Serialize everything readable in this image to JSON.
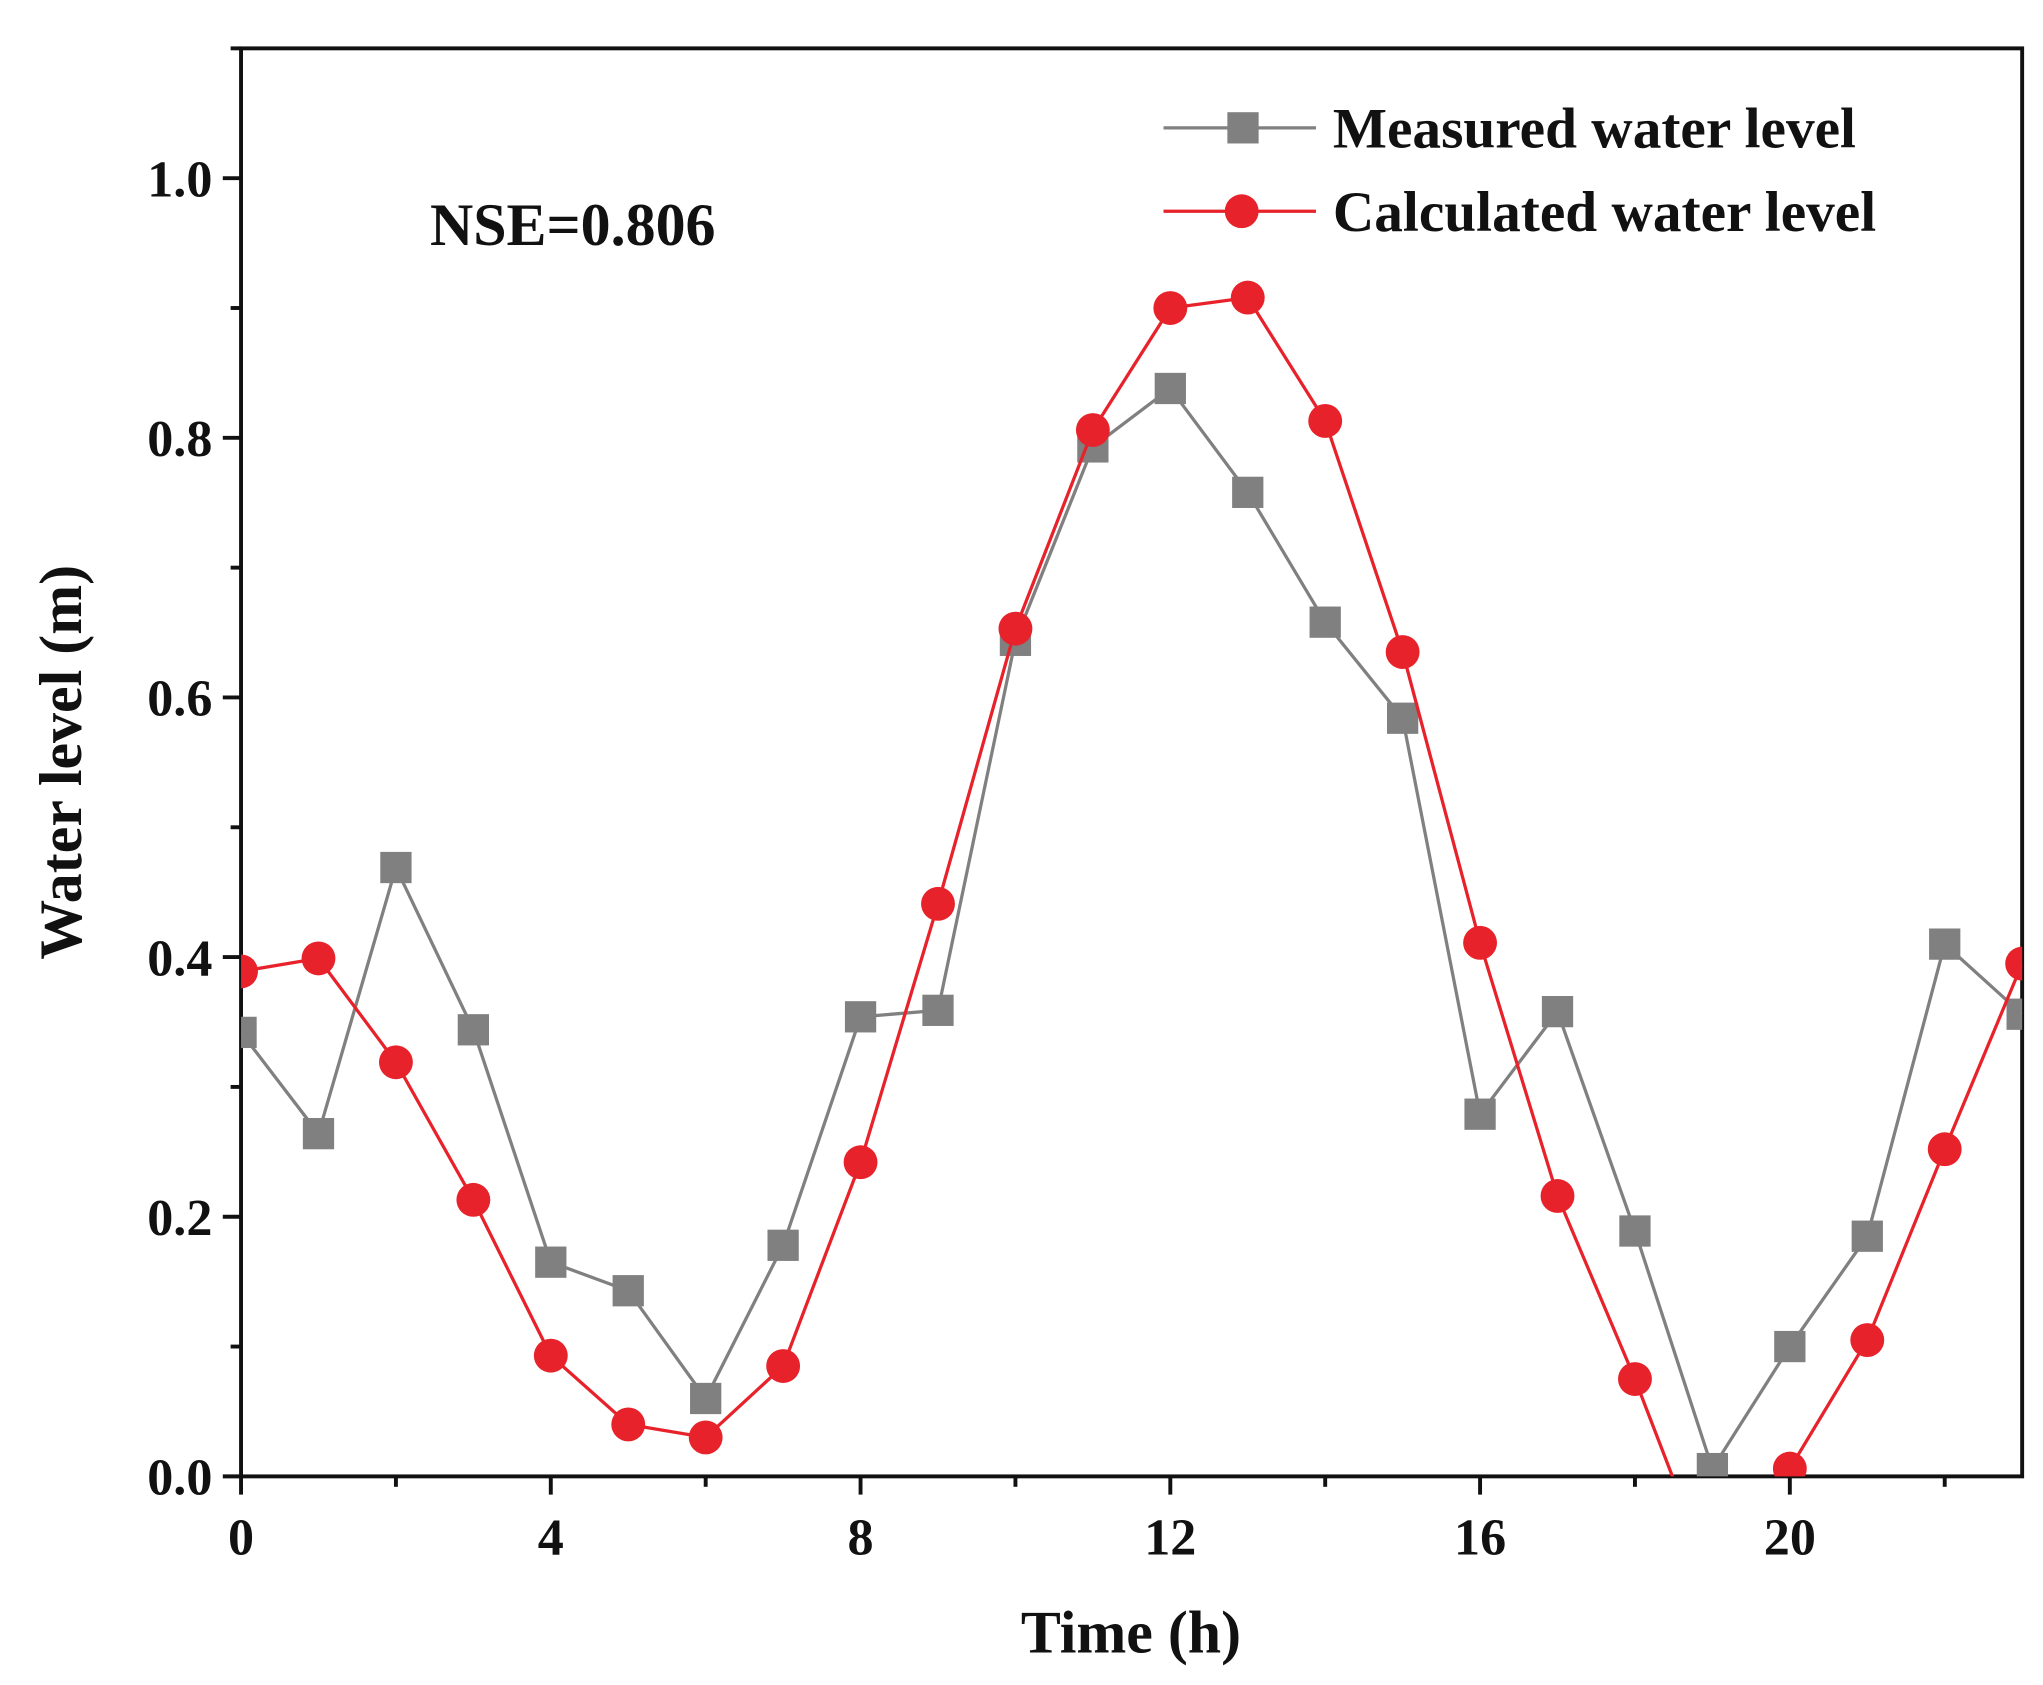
{
  "chart_data": {
    "type": "line",
    "title": "",
    "xlabel": "Time (h)",
    "ylabel": "Water level (m)",
    "xlim": [
      0,
      23
    ],
    "ylim": [
      0,
      1.1
    ],
    "xticks": [
      0,
      4,
      8,
      12,
      16,
      20
    ],
    "xtick_labels": [
      "0",
      "4",
      "8",
      "12",
      "16",
      "20"
    ],
    "yticks": [
      0,
      0.2,
      0.4,
      0.6,
      0.8,
      1.0
    ],
    "ytick_labels": [
      "0.0",
      "0.2",
      "0.4",
      "0.6",
      "0.8",
      "1.0"
    ],
    "grid": false,
    "legend_position": "top-right",
    "annotation": "NSE=0.806",
    "x": [
      0,
      1,
      2,
      3,
      4,
      5,
      6,
      7,
      8,
      9,
      10,
      11,
      12,
      13,
      14,
      15,
      16,
      17,
      18,
      19,
      20,
      21,
      22,
      23
    ],
    "series": [
      {
        "name": "Measured water level",
        "marker": "square",
        "color": "#808080",
        "values": [
          0.342,
          0.264,
          0.469,
          0.344,
          0.165,
          0.143,
          0.06,
          0.178,
          0.354,
          0.359,
          0.644,
          0.793,
          0.838,
          0.758,
          0.658,
          0.584,
          0.279,
          0.358,
          0.189,
          0.006,
          0.1,
          0.185,
          0.41,
          0.356
        ]
      },
      {
        "name": "Calculated water level",
        "marker": "circle",
        "color": "#e8222a",
        "values": [
          0.389,
          0.399,
          0.319,
          0.213,
          0.093,
          0.04,
          0.03,
          0.085,
          0.242,
          0.441,
          0.653,
          0.806,
          0.9,
          0.908,
          0.813,
          0.635,
          0.411,
          0.216,
          0.075,
          -0.08,
          0.006,
          0.105,
          0.252,
          0.395
        ]
      }
    ]
  }
}
